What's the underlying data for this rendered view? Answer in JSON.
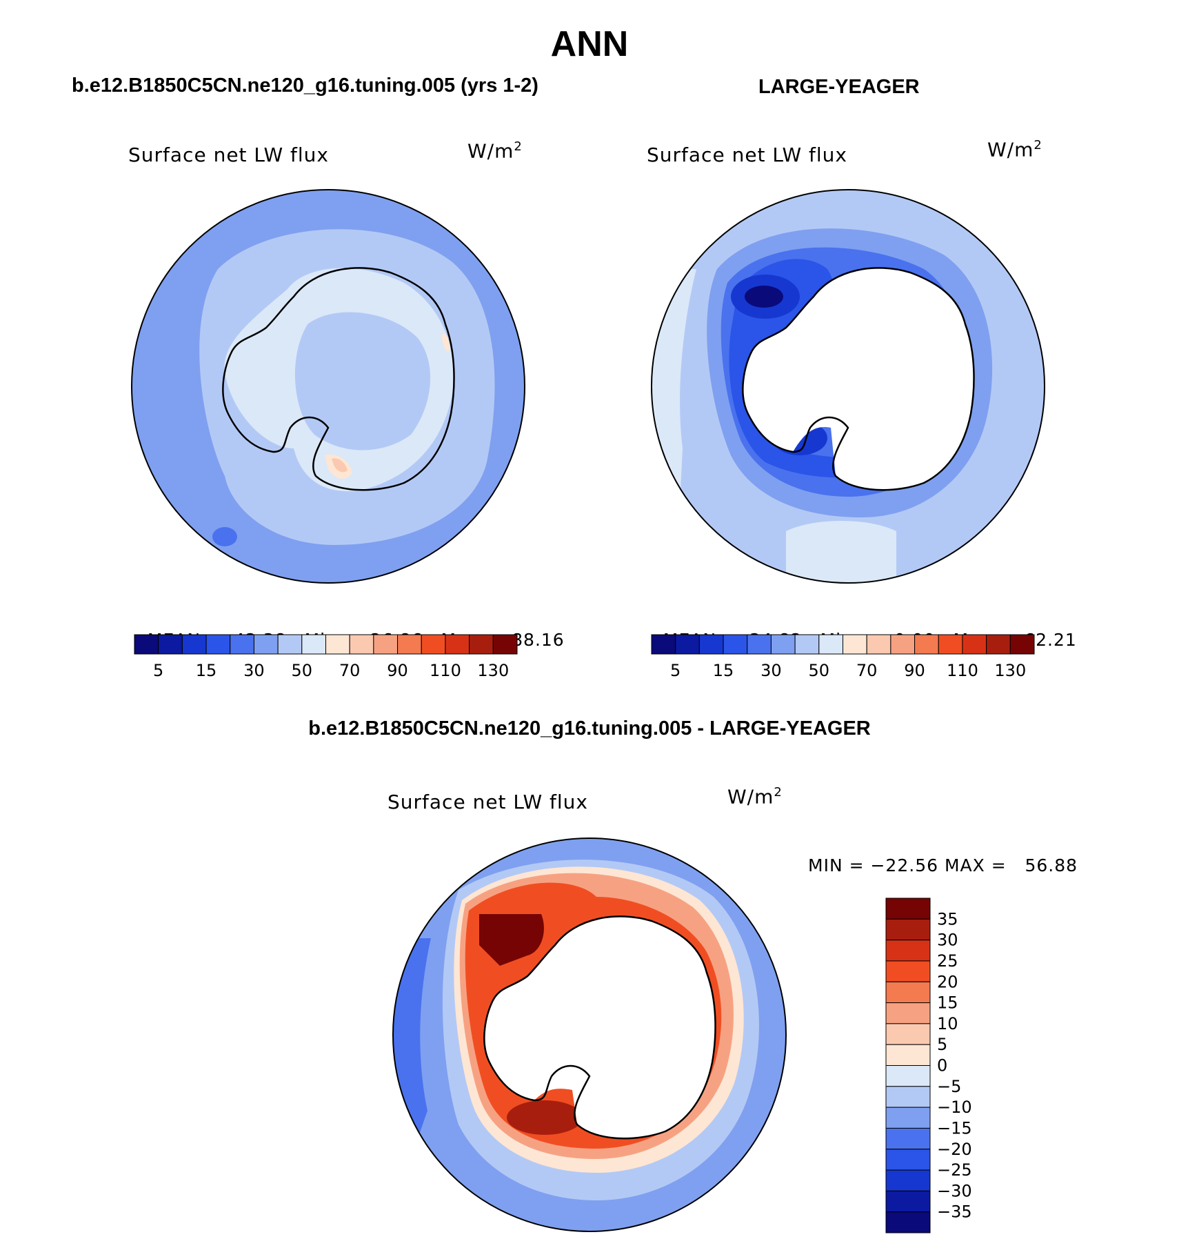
{
  "figure_title": "ANN",
  "panels": [
    {
      "case_title": "b.e12.B1850C5CN.ne120_g16.tuning.005 (yrs 1-2)",
      "variable": "Surface net LW flux",
      "units": "W/m",
      "units_sup": "2",
      "stats": {
        "mean_label": "MEAN=",
        "mean": "42.38",
        "min_label": "Min=",
        "min": "26.86",
        "max_label": "Max=",
        "max": "88.16"
      }
    },
    {
      "case_title": "LARGE-YEAGER",
      "variable": "Surface net LW flux",
      "units": "W/m",
      "units_sup": "2",
      "stats": {
        "mean_label": "MEAN=",
        "mean": "34.82",
        "min_label": "Min=",
        "min": "0.00",
        "max_label": "Max=",
        "max": "62.21"
      }
    },
    {
      "case_title": "b.e12.B1850C5CN.ne120_g16.tuning.005 - LARGE-YEAGER",
      "variable": "Surface net LW flux",
      "units": "W/m",
      "units_sup": "2",
      "minmax_text": "MIN = −22.56 MAX =   56.88"
    }
  ],
  "abs_colorbar": {
    "colors": [
      "#0a0a7a",
      "#0b1aa0",
      "#1638d0",
      "#2b55e8",
      "#4a72ee",
      "#7fa0f0",
      "#b3c9f5",
      "#dbe8f8",
      "#fde6d4",
      "#fbc9b0",
      "#f6a282",
      "#f47a50",
      "#f04e22",
      "#d83216",
      "#a81e0e",
      "#760404"
    ],
    "tick_labels": [
      "5",
      "15",
      "30",
      "50",
      "70",
      "90",
      "110",
      "130"
    ]
  },
  "diff_colorbar": {
    "colors": [
      "#760404",
      "#a81e0e",
      "#d83216",
      "#f04e22",
      "#f47a50",
      "#f6a282",
      "#fbc9b0",
      "#fde6d4",
      "#dbe8f8",
      "#b3c9f5",
      "#7fa0f0",
      "#4a72ee",
      "#2b55e8",
      "#1638d0",
      "#0b1aa0",
      "#0a0a7a"
    ],
    "tick_labels": [
      "35",
      "30",
      "25",
      "20",
      "15",
      "10",
      "5",
      "0",
      "−5",
      "−10",
      "−15",
      "−20",
      "−25",
      "−30",
      "−35"
    ]
  }
}
